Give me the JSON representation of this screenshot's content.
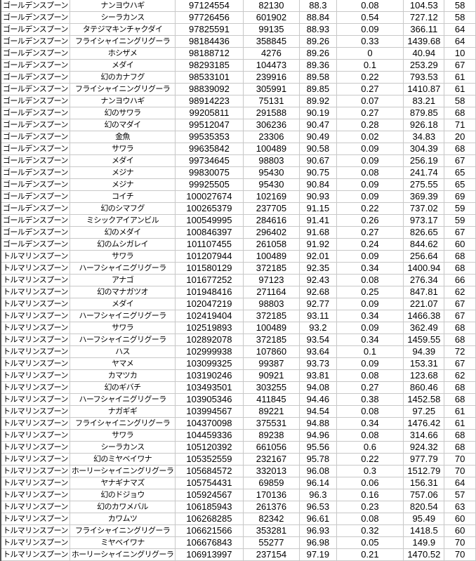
{
  "rows": [
    [
      "ゴールデンスプーン",
      "ナンヨウハギ",
      "97124554",
      "82130",
      "88.3",
      "0.08",
      "104.53",
      "58"
    ],
    [
      "ゴールデンスプーン",
      "シーラカンス",
      "97726456",
      "601902",
      "88.84",
      "0.54",
      "727.12",
      "58"
    ],
    [
      "ゴールデンスプーン",
      "タテジマキンチャクダイ",
      "97825591",
      "99135",
      "88.93",
      "0.09",
      "366.11",
      "64"
    ],
    [
      "ゴールデンスプーン",
      "フライシャイニングリグーラ",
      "98184436",
      "358845",
      "89.26",
      "0.33",
      "1439.68",
      "64"
    ],
    [
      "ゴールデンスプーン",
      "ホシザメ",
      "98188712",
      "4276",
      "89.26",
      "0",
      "40.94",
      "10"
    ],
    [
      "ゴールデンスプーン",
      "メダイ",
      "98293185",
      "104473",
      "89.36",
      "0.1",
      "253.29",
      "67"
    ],
    [
      "ゴールデンスプーン",
      "幻のカナフグ",
      "98533101",
      "239916",
      "89.58",
      "0.22",
      "793.53",
      "61"
    ],
    [
      "ゴールデンスプーン",
      "フライシャイニングリグーラ",
      "98839092",
      "305991",
      "89.85",
      "0.27",
      "1410.87",
      "61"
    ],
    [
      "ゴールデンスプーン",
      "ナンヨウハギ",
      "98914223",
      "75131",
      "89.92",
      "0.07",
      "83.21",
      "58"
    ],
    [
      "ゴールデンスプーン",
      "幻のサワラ",
      "99205811",
      "291588",
      "90.19",
      "0.27",
      "879.85",
      "68"
    ],
    [
      "ゴールデンスプーン",
      "幻のマダイ",
      "99512047",
      "306236",
      "90.47",
      "0.28",
      "926.18",
      "71"
    ],
    [
      "ゴールデンスプーン",
      "金魚",
      "99535353",
      "23306",
      "90.49",
      "0.02",
      "34.83",
      "20"
    ],
    [
      "ゴールデンスプーン",
      "サワラ",
      "99635842",
      "100489",
      "90.58",
      "0.09",
      "304.39",
      "68"
    ],
    [
      "ゴールデンスプーン",
      "メダイ",
      "99734645",
      "98803",
      "90.67",
      "0.09",
      "256.19",
      "67"
    ],
    [
      "ゴールデンスプーン",
      "メジナ",
      "99830075",
      "95430",
      "90.75",
      "0.08",
      "241.74",
      "65"
    ],
    [
      "ゴールデンスプーン",
      "メジナ",
      "99925505",
      "95430",
      "90.84",
      "0.09",
      "275.55",
      "65"
    ],
    [
      "ゴールデンスプーン",
      "コイチ",
      "100027674",
      "102169",
      "90.93",
      "0.09",
      "369.39",
      "69"
    ],
    [
      "ゴールデンスプーン",
      "幻のシマフグ",
      "100265379",
      "237705",
      "91.15",
      "0.22",
      "737.02",
      "59"
    ],
    [
      "ゴールデンスプーン",
      "ミシックアイアンビル",
      "100549995",
      "284616",
      "91.41",
      "0.26",
      "973.17",
      "59"
    ],
    [
      "ゴールデンスプーン",
      "幻のメダイ",
      "100846397",
      "296402",
      "91.68",
      "0.27",
      "826.65",
      "67"
    ],
    [
      "ゴールデンスプーン",
      "幻のムシガレイ",
      "101107455",
      "261058",
      "91.92",
      "0.24",
      "844.62",
      "60"
    ],
    [
      "トルマリンスプーン",
      "サワラ",
      "101207944",
      "100489",
      "92.01",
      "0.09",
      "256.64",
      "68"
    ],
    [
      "トルマリンスプーン",
      "ハーフシャイニグリグーラ",
      "101580129",
      "372185",
      "92.35",
      "0.34",
      "1400.94",
      "68"
    ],
    [
      "トルマリンスプーン",
      "アナゴ",
      "101677252",
      "97123",
      "92.43",
      "0.08",
      "276.34",
      "66"
    ],
    [
      "トルマリンスプーン",
      "幻のマナガツオ",
      "101948416",
      "271164",
      "92.68",
      "0.25",
      "847.81",
      "62"
    ],
    [
      "トルマリンスプーン",
      "メダイ",
      "102047219",
      "98803",
      "92.77",
      "0.09",
      "221.07",
      "67"
    ],
    [
      "トルマリンスプーン",
      "ハーフシャイニグリグーラ",
      "102419404",
      "372185",
      "93.11",
      "0.34",
      "1466.38",
      "67"
    ],
    [
      "トルマリンスプーン",
      "サワラ",
      "102519893",
      "100489",
      "93.2",
      "0.09",
      "362.49",
      "68"
    ],
    [
      "トルマリンスプーン",
      "ハーフシャイニグリグーラ",
      "102892078",
      "372185",
      "93.54",
      "0.34",
      "1459.55",
      "68"
    ],
    [
      "トルマリンスプーン",
      "ハス",
      "102999938",
      "107860",
      "93.64",
      "0.1",
      "94.39",
      "72"
    ],
    [
      "トルマリンスプーン",
      "ヤマメ",
      "103099325",
      "99387",
      "93.73",
      "0.09",
      "153.31",
      "67"
    ],
    [
      "トルマリンスプーン",
      "カマツカ",
      "103190246",
      "90921",
      "93.81",
      "0.08",
      "123.68",
      "62"
    ],
    [
      "トルマリンスプーン",
      "幻のギバチ",
      "103493501",
      "303255",
      "94.08",
      "0.27",
      "860.46",
      "68"
    ],
    [
      "トルマリンスプーン",
      "ハーフシャイニグリグーラ",
      "103905346",
      "411845",
      "94.46",
      "0.38",
      "1452.58",
      "68"
    ],
    [
      "トルマリンスプーン",
      "ナガギギ",
      "103994567",
      "89221",
      "94.54",
      "0.08",
      "97.25",
      "61"
    ],
    [
      "トルマリンスプーン",
      "フライシャイニングリグーラ",
      "104370098",
      "375531",
      "94.88",
      "0.34",
      "1476.42",
      "61"
    ],
    [
      "トルマリンスプーン",
      "サワラ",
      "104459336",
      "89238",
      "94.96",
      "0.08",
      "314.66",
      "68"
    ],
    [
      "トルマリンスプーン",
      "シーラカンス",
      "105120392",
      "661056",
      "95.56",
      "0.6",
      "924.32",
      "68"
    ],
    [
      "トルマリンスプーン",
      "幻のミヤベイワナ",
      "105352559",
      "232167",
      "95.78",
      "0.22",
      "977.79",
      "70"
    ],
    [
      "トルマリンスプーン",
      "ホーリーシャイニングリグーラ",
      "105684572",
      "332013",
      "96.08",
      "0.3",
      "1512.79",
      "70"
    ],
    [
      "トルマリンスプーン",
      "ヤナギナマズ",
      "105754431",
      "69859",
      "96.14",
      "0.06",
      "156.31",
      "64"
    ],
    [
      "トルマリンスプーン",
      "幻のドジョウ",
      "105924567",
      "170136",
      "96.3",
      "0.16",
      "757.06",
      "57"
    ],
    [
      "トルマリンスプーン",
      "幻のカワメバル",
      "106185943",
      "261376",
      "96.53",
      "0.23",
      "820.54",
      "63"
    ],
    [
      "トルマリンスプーン",
      "カワムツ",
      "106268285",
      "82342",
      "96.61",
      "0.08",
      "95.49",
      "60"
    ],
    [
      "トルマリンスプーン",
      "フライシャイニングリグーラ",
      "106621566",
      "353281",
      "96.93",
      "0.32",
      "1418.5",
      "60"
    ],
    [
      "トルマリンスプーン",
      "ミヤベイワナ",
      "106676843",
      "55277",
      "96.98",
      "0.05",
      "149.9",
      "70"
    ],
    [
      "トルマリンスプーン",
      "ホーリーシャイニングリグーラ",
      "106913997",
      "237154",
      "97.19",
      "0.21",
      "1470.52",
      "70"
    ]
  ]
}
